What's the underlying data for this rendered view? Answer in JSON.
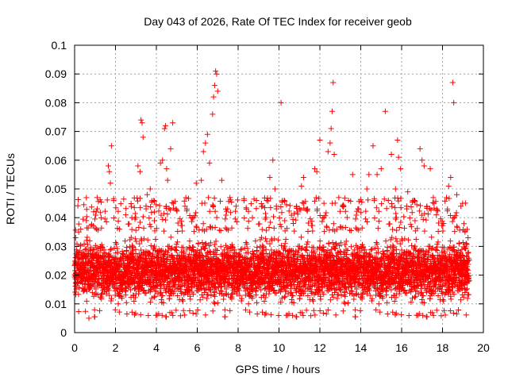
{
  "chart_data": {
    "type": "scatter",
    "title": "Day 043 of 2026, Rate Of TEC Index for receiver geob",
    "xlabel": "GPS time / hours",
    "ylabel": "ROTI / TECUs",
    "xlim": [
      0,
      20
    ],
    "ylim": [
      0,
      0.1
    ],
    "x_ticks": [
      "0",
      "2",
      "4",
      "6",
      "8",
      "10",
      "12",
      "14",
      "16",
      "18",
      "20"
    ],
    "y_ticks": [
      "0",
      "0.01",
      "0.02",
      "0.03",
      "0.04",
      "0.05",
      "0.06",
      "0.07",
      "0.08",
      "0.09",
      "0.1"
    ],
    "grid": true,
    "marker": "plus",
    "color": "#ff0000",
    "data_x_range": [
      0,
      19.3
    ],
    "typical_band": [
      0.008,
      0.035
    ],
    "series": [
      {
        "points": [
          [
            0.05,
            0.033
          ],
          [
            0.2,
            0.035
          ],
          [
            0.3,
            0.036
          ],
          [
            0.7,
            0.005
          ],
          [
            0.9,
            0.029
          ],
          [
            1.1,
            0.047
          ],
          [
            1.3,
            0.04
          ],
          [
            1.65,
            0.058
          ],
          [
            1.7,
            0.056
          ],
          [
            1.75,
            0.052
          ],
          [
            1.8,
            0.065
          ],
          [
            2.2,
            0.036
          ],
          [
            2.5,
            0.041
          ],
          [
            2.8,
            0.04
          ],
          [
            3.1,
            0.058
          ],
          [
            3.2,
            0.056
          ],
          [
            3.25,
            0.074
          ],
          [
            3.3,
            0.073
          ],
          [
            3.35,
            0.068
          ],
          [
            3.55,
            0.048
          ],
          [
            3.7,
            0.05
          ],
          [
            3.9,
            0.042
          ],
          [
            4.2,
            0.059
          ],
          [
            4.3,
            0.06
          ],
          [
            4.4,
            0.071
          ],
          [
            4.45,
            0.072
          ],
          [
            4.5,
            0.057
          ],
          [
            4.55,
            0.053
          ],
          [
            4.8,
            0.073
          ],
          [
            4.7,
            0.064
          ],
          [
            5.4,
            0.044
          ],
          [
            5.7,
            0.04
          ],
          [
            5.95,
            0.052
          ],
          [
            6.2,
            0.053
          ],
          [
            6.3,
            0.063
          ],
          [
            6.4,
            0.066
          ],
          [
            6.5,
            0.069
          ],
          [
            6.6,
            0.059
          ],
          [
            6.75,
            0.076
          ],
          [
            6.8,
            0.082
          ],
          [
            6.85,
            0.086
          ],
          [
            6.9,
            0.091
          ],
          [
            6.95,
            0.09
          ],
          [
            7.0,
            0.084
          ],
          [
            7.2,
            0.053
          ],
          [
            7.4,
            0.043
          ],
          [
            7.6,
            0.047
          ],
          [
            7.9,
            0.044
          ],
          [
            8.4,
            0.043
          ],
          [
            8.7,
            0.04
          ],
          [
            8.9,
            0.046
          ],
          [
            9.2,
            0.044
          ],
          [
            9.4,
            0.046
          ],
          [
            9.55,
            0.054
          ],
          [
            9.7,
            0.06
          ],
          [
            9.8,
            0.05
          ],
          [
            10.1,
            0.08
          ],
          [
            10.3,
            0.031
          ],
          [
            10.7,
            0.038
          ],
          [
            10.9,
            0.042
          ],
          [
            11.1,
            0.051
          ],
          [
            11.2,
            0.054
          ],
          [
            11.4,
            0.043
          ],
          [
            11.75,
            0.057
          ],
          [
            11.85,
            0.056
          ],
          [
            12.0,
            0.067
          ],
          [
            12.2,
            0.045
          ],
          [
            12.4,
            0.063
          ],
          [
            12.5,
            0.066
          ],
          [
            12.55,
            0.071
          ],
          [
            12.6,
            0.077
          ],
          [
            12.65,
            0.087
          ],
          [
            12.7,
            0.062
          ],
          [
            13.1,
            0.044
          ],
          [
            13.4,
            0.046
          ],
          [
            13.6,
            0.055
          ],
          [
            13.9,
            0.043
          ],
          [
            14.3,
            0.05
          ],
          [
            14.4,
            0.055
          ],
          [
            14.6,
            0.065
          ],
          [
            14.8,
            0.055
          ],
          [
            15.0,
            0.057
          ],
          [
            15.2,
            0.077
          ],
          [
            15.35,
            0.046
          ],
          [
            15.5,
            0.062
          ],
          [
            15.7,
            0.05
          ],
          [
            15.8,
            0.067
          ],
          [
            15.85,
            0.061
          ],
          [
            15.95,
            0.057
          ],
          [
            16.3,
            0.049
          ],
          [
            16.6,
            0.046
          ],
          [
            16.9,
            0.064
          ],
          [
            17.0,
            0.06
          ],
          [
            17.1,
            0.058
          ],
          [
            17.4,
            0.057
          ],
          [
            17.55,
            0.047
          ],
          [
            17.7,
            0.041
          ],
          [
            18.05,
            0.038
          ],
          [
            18.3,
            0.051
          ],
          [
            18.4,
            0.054
          ],
          [
            18.5,
            0.087
          ],
          [
            18.55,
            0.08
          ],
          [
            18.7,
            0.048
          ],
          [
            18.9,
            0.044
          ],
          [
            19.1,
            0.035
          ],
          [
            19.25,
            0.033
          ]
        ]
      }
    ]
  }
}
